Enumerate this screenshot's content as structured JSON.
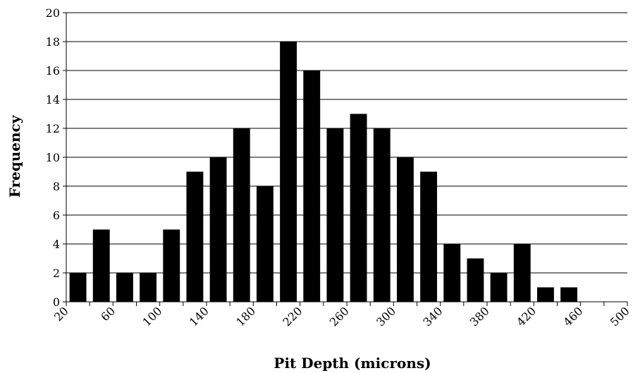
{
  "chart_data": {
    "type": "bar",
    "xlabel": "Pit Depth (microns)",
    "ylabel": "Frequency",
    "ylim": [
      0,
      20
    ],
    "yticks": [
      0,
      2,
      4,
      6,
      8,
      10,
      12,
      14,
      16,
      18,
      20
    ],
    "xlim": [
      20,
      500
    ],
    "xtick_labels": [
      "20",
      "60",
      "100",
      "140",
      "180",
      "220",
      "260",
      "300",
      "340",
      "380",
      "420",
      "460",
      "500"
    ],
    "bin_edges": [
      20,
      40,
      60,
      80,
      100,
      120,
      140,
      160,
      180,
      200,
      220,
      240,
      260,
      280,
      300,
      320,
      340,
      360,
      380,
      400,
      420,
      440,
      460,
      480,
      500
    ],
    "values": [
      2,
      5,
      2,
      2,
      5,
      9,
      10,
      12,
      8,
      18,
      16,
      12,
      13,
      12,
      10,
      9,
      4,
      3,
      2,
      4,
      1,
      1,
      0,
      0
    ],
    "grid": true,
    "legend": "none",
    "bar_color": "#000000"
  }
}
